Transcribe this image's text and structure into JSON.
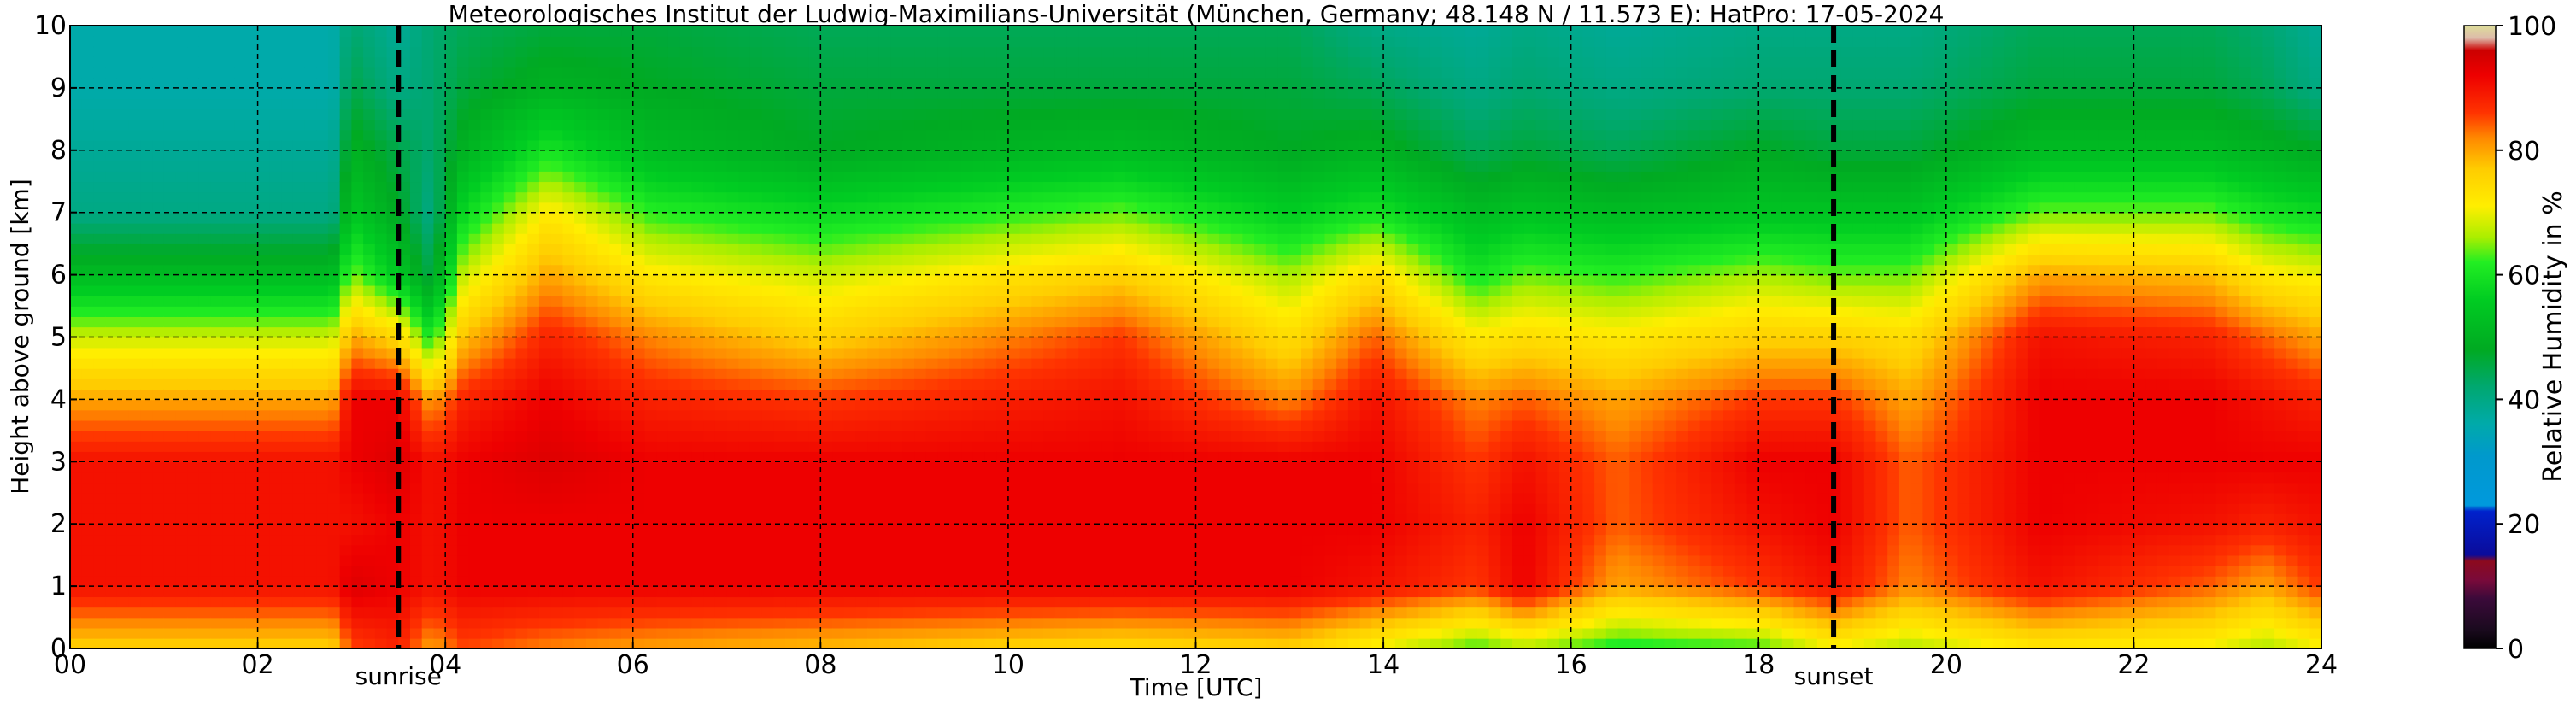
{
  "chart_data": {
    "type": "heatmap",
    "title": "Meteorologisches Institut der Ludwig-Maximilians-Universität (München, Germany; 48.148 N / 11.573 E):    HatPro: 17-05-2024",
    "xlabel": "Time [UTC]",
    "ylabel": "Height above ground [km]",
    "xlim": [
      0,
      24
    ],
    "ylim": [
      0,
      10
    ],
    "x_ticks": [
      0,
      2,
      4,
      6,
      8,
      10,
      12,
      14,
      16,
      18,
      20,
      22,
      24
    ],
    "x_tick_labels": [
      "00",
      "02",
      "04",
      "06",
      "08",
      "10",
      "12",
      "14",
      "16",
      "18",
      "20",
      "22",
      "24"
    ],
    "y_ticks": [
      0,
      1,
      2,
      3,
      4,
      5,
      6,
      7,
      8,
      9,
      10
    ],
    "y_tick_labels": [
      "0",
      "1",
      "2",
      "3",
      "4",
      "5",
      "6",
      "7",
      "8",
      "9",
      "10"
    ],
    "grid": true,
    "colorbar": {
      "label": "Relative Humidity in %",
      "min": 0,
      "max": 100,
      "ticks": [
        0,
        20,
        40,
        60,
        80,
        100
      ],
      "tick_labels": [
        "0",
        "20",
        "40",
        "60",
        "80",
        "100"
      ]
    },
    "markers": [
      {
        "label": "sunrise",
        "x": 3.5
      },
      {
        "label": "sunset",
        "x": 18.8
      }
    ],
    "humidity_profiles": [
      {
        "t": 0.0,
        "rh": [
          76,
          90,
          90,
          90,
          80,
          68,
          52,
          40,
          38,
          36,
          36
        ]
      },
      {
        "t": 2.8,
        "rh": [
          76,
          90,
          90,
          90,
          80,
          68,
          52,
          40,
          38,
          36,
          36
        ]
      },
      {
        "t": 3.0,
        "rh": [
          85,
          94,
          90,
          92,
          92,
          80,
          65,
          55,
          50,
          45,
          42
        ]
      },
      {
        "t": 3.5,
        "rh": [
          88,
          92,
          92,
          94,
          92,
          75,
          55,
          48,
          45,
          40,
          38
        ]
      },
      {
        "t": 3.85,
        "rh": [
          80,
          90,
          90,
          90,
          80,
          60,
          45,
          40,
          42,
          42,
          42
        ]
      },
      {
        "t": 4.2,
        "rh": [
          85,
          92,
          92,
          92,
          88,
          78,
          68,
          58,
          50,
          46,
          44
        ]
      },
      {
        "t": 5.1,
        "rh": [
          82,
          92,
          92,
          94,
          92,
          88,
          80,
          72,
          60,
          50,
          46
        ]
      },
      {
        "t": 6.2,
        "rh": [
          80,
          92,
          92,
          92,
          88,
          82,
          72,
          62,
          52,
          48,
          46
        ]
      },
      {
        "t": 8.0,
        "rh": [
          78,
          92,
          92,
          92,
          86,
          76,
          68,
          58,
          48,
          46,
          44
        ]
      },
      {
        "t": 11.2,
        "rh": [
          74,
          92,
          92,
          92,
          90,
          86,
          76,
          64,
          52,
          46,
          44
        ]
      },
      {
        "t": 13.0,
        "rh": [
          76,
          92,
          92,
          92,
          82,
          74,
          66,
          56,
          48,
          46,
          44
        ]
      },
      {
        "t": 13.9,
        "rh": [
          70,
          90,
          92,
          92,
          90,
          84,
          74,
          60,
          50,
          44,
          40
        ]
      },
      {
        "t": 15.0,
        "rh": [
          62,
          86,
          88,
          86,
          82,
          72,
          60,
          52,
          44,
          40,
          38
        ]
      },
      {
        "t": 15.5,
        "rh": [
          66,
          92,
          92,
          90,
          84,
          74,
          64,
          54,
          46,
          42,
          40
        ]
      },
      {
        "t": 16.5,
        "rh": [
          60,
          80,
          84,
          84,
          80,
          72,
          62,
          52,
          44,
          40,
          38
        ]
      },
      {
        "t": 18.0,
        "rh": [
          62,
          86,
          90,
          92,
          86,
          76,
          66,
          54,
          48,
          42,
          40
        ]
      },
      {
        "t": 18.8,
        "rh": [
          70,
          90,
          92,
          92,
          86,
          76,
          64,
          54,
          46,
          42,
          40
        ]
      },
      {
        "t": 19.6,
        "rh": [
          66,
          82,
          84,
          84,
          80,
          74,
          64,
          54,
          46,
          42,
          40
        ]
      },
      {
        "t": 21.0,
        "rh": [
          72,
          90,
          92,
          92,
          92,
          90,
          80,
          64,
          52,
          46,
          44
        ]
      },
      {
        "t": 22.8,
        "rh": [
          70,
          84,
          90,
          92,
          92,
          88,
          78,
          64,
          52,
          46,
          44
        ]
      },
      {
        "t": 23.4,
        "rh": [
          66,
          80,
          88,
          92,
          90,
          84,
          72,
          60,
          50,
          44,
          42
        ]
      },
      {
        "t": 24.0,
        "rh": [
          70,
          86,
          90,
          92,
          88,
          80,
          70,
          58,
          48,
          40,
          38
        ]
      }
    ],
    "colorscale": [
      {
        "v": 0,
        "color": "#000000"
      },
      {
        "v": 3,
        "color": "#1a0a1e"
      },
      {
        "v": 8,
        "color": "#3b0a3a"
      },
      {
        "v": 11,
        "color": "#7a0a3a"
      },
      {
        "v": 14,
        "color": "#8c0a1e"
      },
      {
        "v": 15,
        "color": "#0b0b9a"
      },
      {
        "v": 22,
        "color": "#0022cc"
      },
      {
        "v": 23,
        "color": "#0099dd"
      },
      {
        "v": 31,
        "color": "#0099cc"
      },
      {
        "v": 36,
        "color": "#00aaaa"
      },
      {
        "v": 42,
        "color": "#00a870"
      },
      {
        "v": 48,
        "color": "#00aa22"
      },
      {
        "v": 56,
        "color": "#00cc22"
      },
      {
        "v": 62,
        "color": "#22ee22"
      },
      {
        "v": 66,
        "color": "#aaee00"
      },
      {
        "v": 71,
        "color": "#ffee00"
      },
      {
        "v": 77,
        "color": "#ffcc00"
      },
      {
        "v": 82,
        "color": "#ff8800"
      },
      {
        "v": 86,
        "color": "#ff3300"
      },
      {
        "v": 92,
        "color": "#ee0000"
      },
      {
        "v": 96,
        "color": "#cc0000"
      },
      {
        "v": 98,
        "color": "#ddbbaa"
      },
      {
        "v": 100,
        "color": "#dddd99"
      }
    ]
  }
}
